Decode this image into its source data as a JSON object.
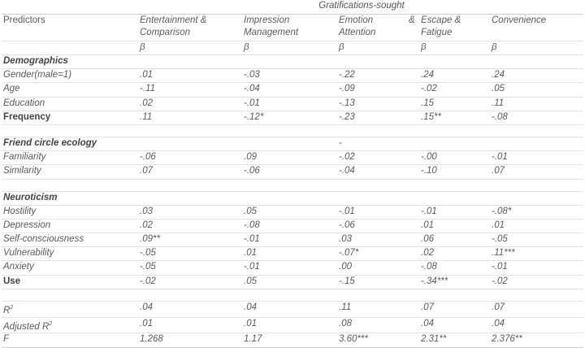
{
  "group_header": "Gratifications-sought",
  "headers": {
    "predictors": "Predictors",
    "cols": [
      "Entertainment & Comparison",
      "Impression Management",
      "Emotion Attention",
      "Escape & Fatigue",
      "Convenience"
    ],
    "emotion_amp": "&"
  },
  "beta": "β",
  "sections": {
    "demographics": "Demographics",
    "friend": "Friend circle ecology",
    "friend_dash": "-",
    "neuroticism": "Neuroticism"
  },
  "rows": {
    "gender": {
      "label": "Gender(male=1)",
      "v": [
        ".01",
        "-.03",
        "-.22",
        ".24",
        ".24"
      ]
    },
    "age": {
      "label": "Age",
      "v": [
        "-.11",
        "-.04",
        "-.09",
        "-.02",
        ".05"
      ]
    },
    "education": {
      "label": "Education",
      "v": [
        ".02",
        "-.01",
        "-.13",
        ".15",
        ".11"
      ]
    },
    "frequency": {
      "label": "Frequency",
      "v": [
        ".11",
        "-.12*",
        "-.23",
        ".15**",
        "-.08"
      ]
    },
    "familiarity": {
      "label": "Familiarity",
      "v": [
        "-.06",
        ".09",
        "-.02",
        "-.00",
        "-.01"
      ]
    },
    "similarity": {
      "label": "Similarity",
      "v": [
        ".07",
        "-.06",
        "-.04",
        "-.10",
        ".07"
      ]
    },
    "hostility": {
      "label": "Hostility",
      "v": [
        ".03",
        ".05",
        "-.01",
        "-.01",
        "-.08*"
      ]
    },
    "depression": {
      "label": "Depression",
      "v": [
        ".02",
        "-.08",
        "-.06",
        ".01",
        ".01"
      ]
    },
    "selfcon": {
      "label": "Self-consciousness",
      "v": [
        ".09**",
        "-.01",
        ".03",
        ".06",
        "-.05"
      ]
    },
    "vulnerability": {
      "label": "Vulnerability",
      "v": [
        "-.05",
        ".01",
        "-.07*",
        ".02",
        ".11***"
      ]
    },
    "anxiety": {
      "label": "Anxiety",
      "v": [
        "-.05",
        "-.01",
        ".00",
        "-.08",
        "-.01"
      ]
    },
    "use": {
      "label": "Use",
      "v": [
        "-.02",
        ".05",
        "-.15",
        "-.34***",
        "-.02"
      ]
    },
    "r2": {
      "label": "R",
      "sup": "2",
      "v": [
        ".04",
        ".04",
        ".11",
        ".07",
        ".07"
      ]
    },
    "adjr2": {
      "label": "Adjusted R",
      "sup": "2",
      "v": [
        ".01",
        ".01",
        ".08",
        ".04",
        ".04"
      ]
    },
    "f": {
      "label": "F",
      "v": [
        "1.268",
        "1.17",
        "3.60***",
        "2.31**",
        "2.376**"
      ]
    }
  }
}
